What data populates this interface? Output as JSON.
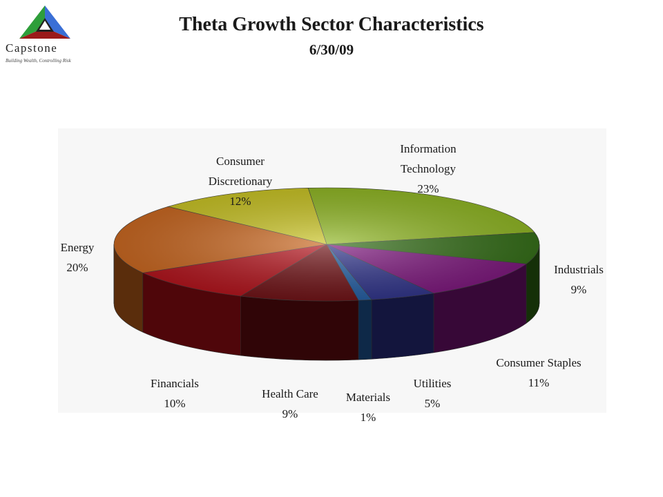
{
  "header": {
    "title": "Theta Growth Sector Characteristics",
    "subtitle": "6/30/09"
  },
  "logo": {
    "name": "Capstone",
    "tagline": "Building Wealth, Controlling Risk",
    "colors": [
      "#2e9e3a",
      "#3a6fd6",
      "#9a1a1a"
    ]
  },
  "chart_data": {
    "type": "pie",
    "title": "Theta Growth Sector Characteristics",
    "subtitle": "6/30/09",
    "legend": "none",
    "style": "3d",
    "slices": [
      {
        "label": "Information\nTechnology",
        "value": 23,
        "display": "23%",
        "color": "#8db51e"
      },
      {
        "label": "Industrials",
        "value": 9,
        "display": "9%",
        "color": "#2f6a12"
      },
      {
        "label": "Consumer Staples",
        "value": 11,
        "display": "11%",
        "color": "#7a127a"
      },
      {
        "label": "Utilities",
        "value": 5,
        "display": "5%",
        "color": "#2b2f87"
      },
      {
        "label": "Materials",
        "value": 1,
        "display": "1%",
        "color": "#1f5aa0"
      },
      {
        "label": "Health Care",
        "value": 9,
        "display": "9%",
        "color": "#6b0c10"
      },
      {
        "label": "Financials",
        "value": 10,
        "display": "10%",
        "color": "#b00d16"
      },
      {
        "label": "Energy",
        "value": 20,
        "display": "20%",
        "color": "#c8631a"
      },
      {
        "label": "Consumer\nDiscretionary",
        "value": 12,
        "display": "12%",
        "color": "#c8c21e"
      }
    ]
  }
}
